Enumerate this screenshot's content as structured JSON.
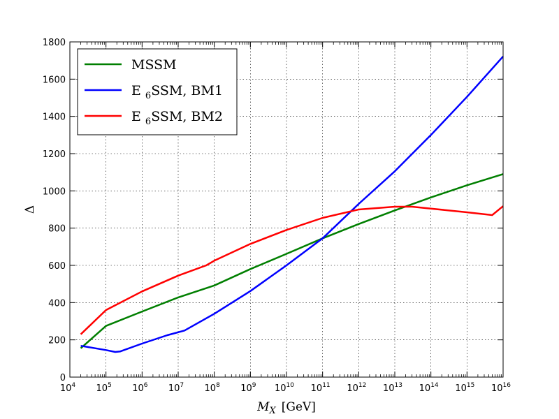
{
  "chart_data": {
    "type": "line",
    "xscale": "log",
    "xlim": [
      10000,
      1e+16
    ],
    "ylim": [
      0,
      1800
    ],
    "grid": true,
    "legend_position": "top-left",
    "xlabel": {
      "main": "M",
      "sub": "X",
      "unit": "[GeV]"
    },
    "ylabel": "Δ",
    "x_ticks": [
      {
        "base": "10",
        "exp": "4"
      },
      {
        "base": "10",
        "exp": "5"
      },
      {
        "base": "10",
        "exp": "6"
      },
      {
        "base": "10",
        "exp": "7"
      },
      {
        "base": "10",
        "exp": "8"
      },
      {
        "base": "10",
        "exp": "9"
      },
      {
        "base": "10",
        "exp": "10"
      },
      {
        "base": "10",
        "exp": "11"
      },
      {
        "base": "10",
        "exp": "12"
      },
      {
        "base": "10",
        "exp": "13"
      },
      {
        "base": "10",
        "exp": "14"
      },
      {
        "base": "10",
        "exp": "15"
      },
      {
        "base": "10",
        "exp": "16"
      }
    ],
    "y_ticks": [
      "0",
      "200",
      "400",
      "600",
      "800",
      "1000",
      "1200",
      "1400",
      "1600",
      "1800"
    ],
    "series": [
      {
        "legend": {
          "pre": "MSSM",
          "sub": "",
          "post": ""
        },
        "color": "#007f00",
        "x": [
          20000,
          100000,
          1000000,
          10000000,
          100000000,
          1000000000,
          10000000000,
          100000000000,
          1000000000000,
          10000000000000,
          100000000000000,
          1000000000000000,
          10000000000000000
        ],
        "y": [
          155,
          275,
          352,
          428,
          492,
          580,
          662,
          745,
          822,
          895,
          965,
          1030,
          1090
        ]
      },
      {
        "legend": {
          "pre": "E ",
          "sub": "6",
          "post": "SSM, BM1"
        },
        "color": "#0000ff",
        "x": [
          20000,
          100000,
          180000,
          250000,
          1000000,
          5000000,
          15000000,
          100000000,
          1000000000,
          10000000000,
          100000000000,
          1000000000000,
          10000000000000,
          100000000000000,
          1000000000000000,
          10000000000000000
        ],
        "y": [
          168,
          145,
          135,
          138,
          180,
          225,
          250,
          340,
          462,
          600,
          745,
          930,
          1105,
          1300,
          1505,
          1722
        ]
      },
      {
        "legend": {
          "pre": "E ",
          "sub": "6",
          "post": "SSM, BM2"
        },
        "color": "#ff0000",
        "x": [
          20000,
          100000,
          1000000,
          10000000,
          60000000,
          100000000,
          1000000000,
          10000000000,
          100000000000,
          1000000000000,
          10000000000000,
          30000000000000,
          100000000000000,
          1000000000000000,
          5000000000000000,
          10000000000000000
        ],
        "y": [
          230,
          360,
          460,
          545,
          600,
          625,
          715,
          790,
          855,
          900,
          915,
          915,
          905,
          885,
          870,
          918
        ]
      }
    ]
  }
}
